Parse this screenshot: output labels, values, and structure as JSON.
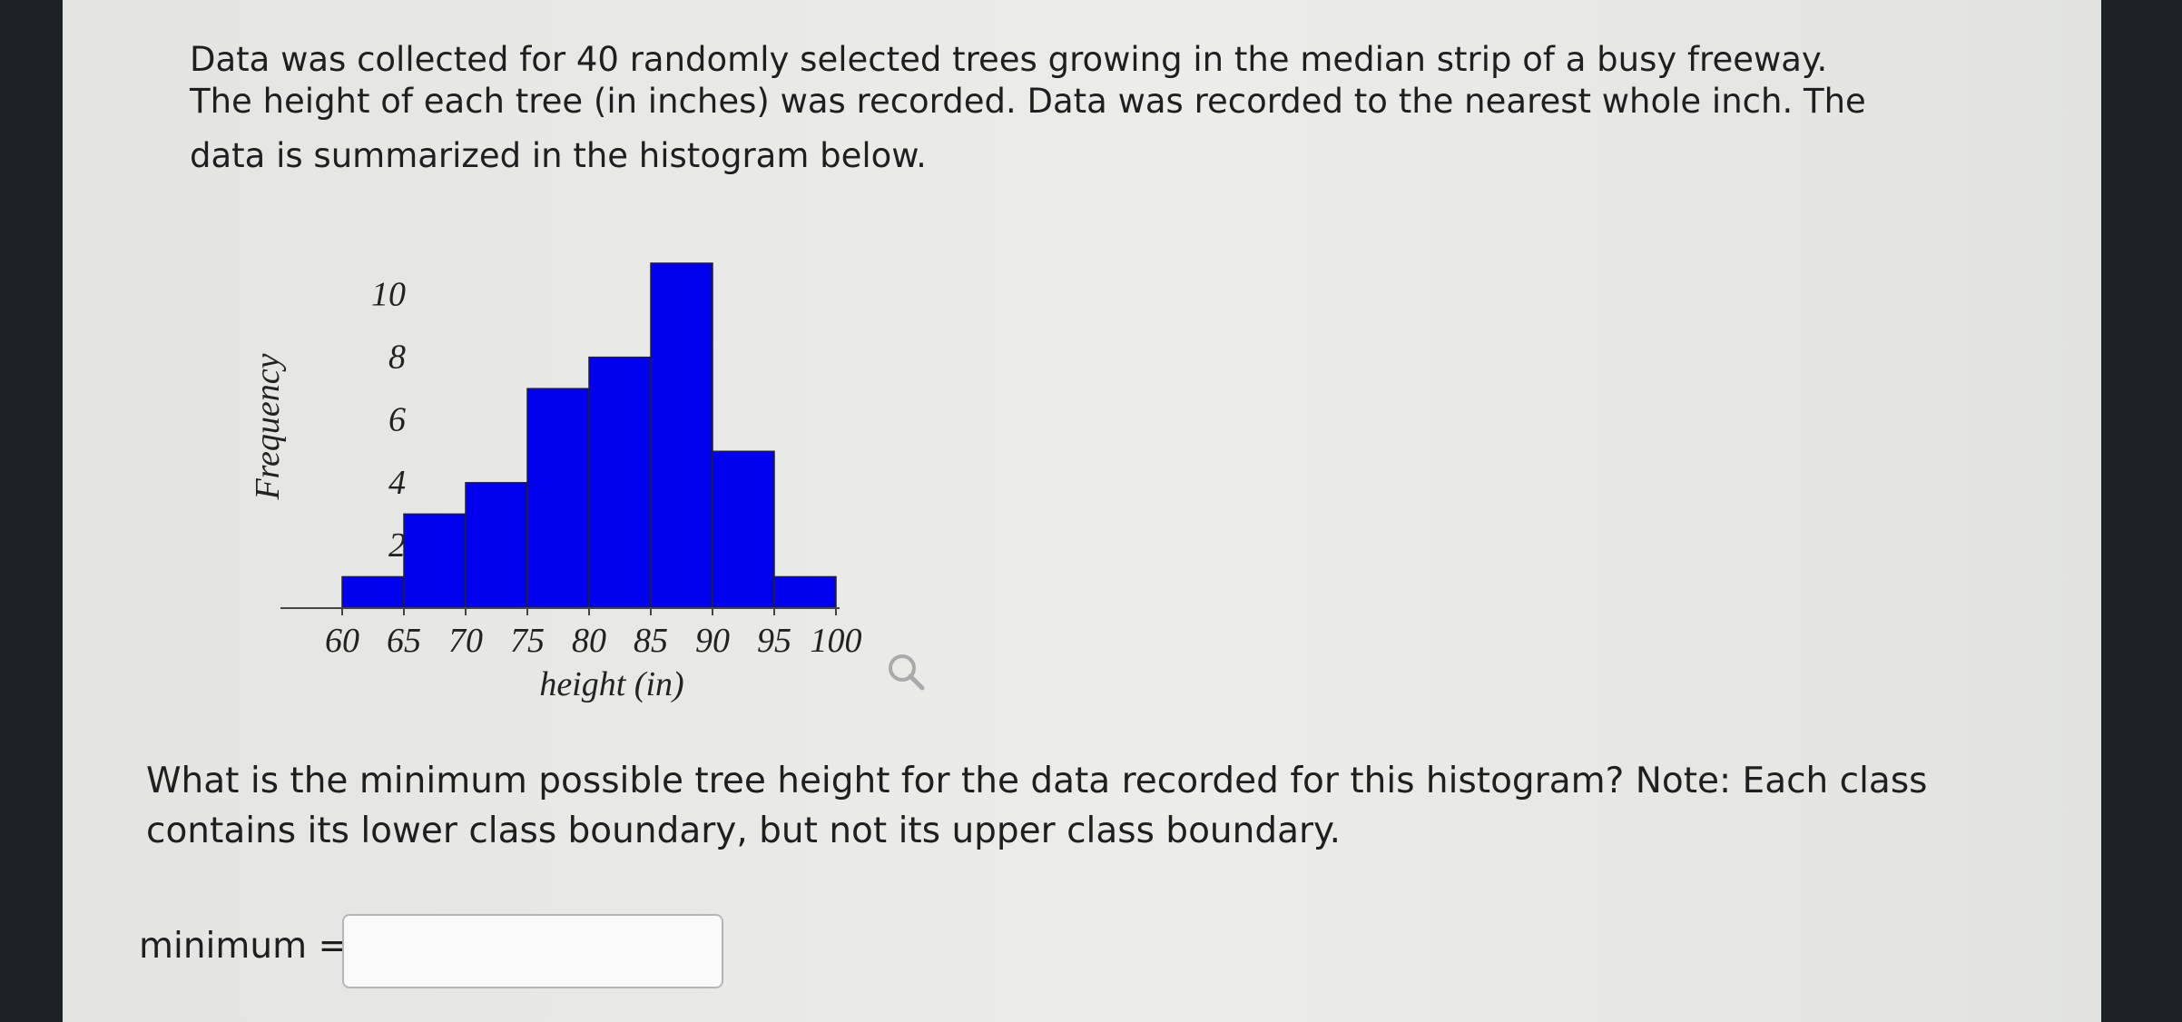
{
  "intro": [
    "Data was collected for 40 randomly selected trees growing in the median strip of a busy freeway.",
    "The height of each tree (in inches) was recorded. Data was recorded to the nearest whole inch. The",
    "data is summarized in the histogram below."
  ],
  "chart_data": {
    "type": "histogram",
    "ylabel": "Frequency",
    "xlabel": "height (in)",
    "bins": [
      60,
      65,
      70,
      75,
      80,
      85,
      90,
      95,
      100
    ],
    "values": [
      1,
      3,
      4,
      7,
      8,
      11,
      5,
      1
    ],
    "color": "#0000ee",
    "xlim": [
      55,
      100
    ],
    "xticks": [
      60,
      65,
      70,
      75,
      80,
      85,
      90,
      95,
      100
    ],
    "ylim": [
      0,
      11
    ],
    "yticks": [
      2,
      4,
      6,
      8,
      10
    ]
  },
  "question": [
    "What is the minimum possible tree height for the data recorded for this histogram? Note: Each class",
    "contains its lower class boundary, but not its upper class boundary."
  ],
  "answer_label": "minimum ="
}
